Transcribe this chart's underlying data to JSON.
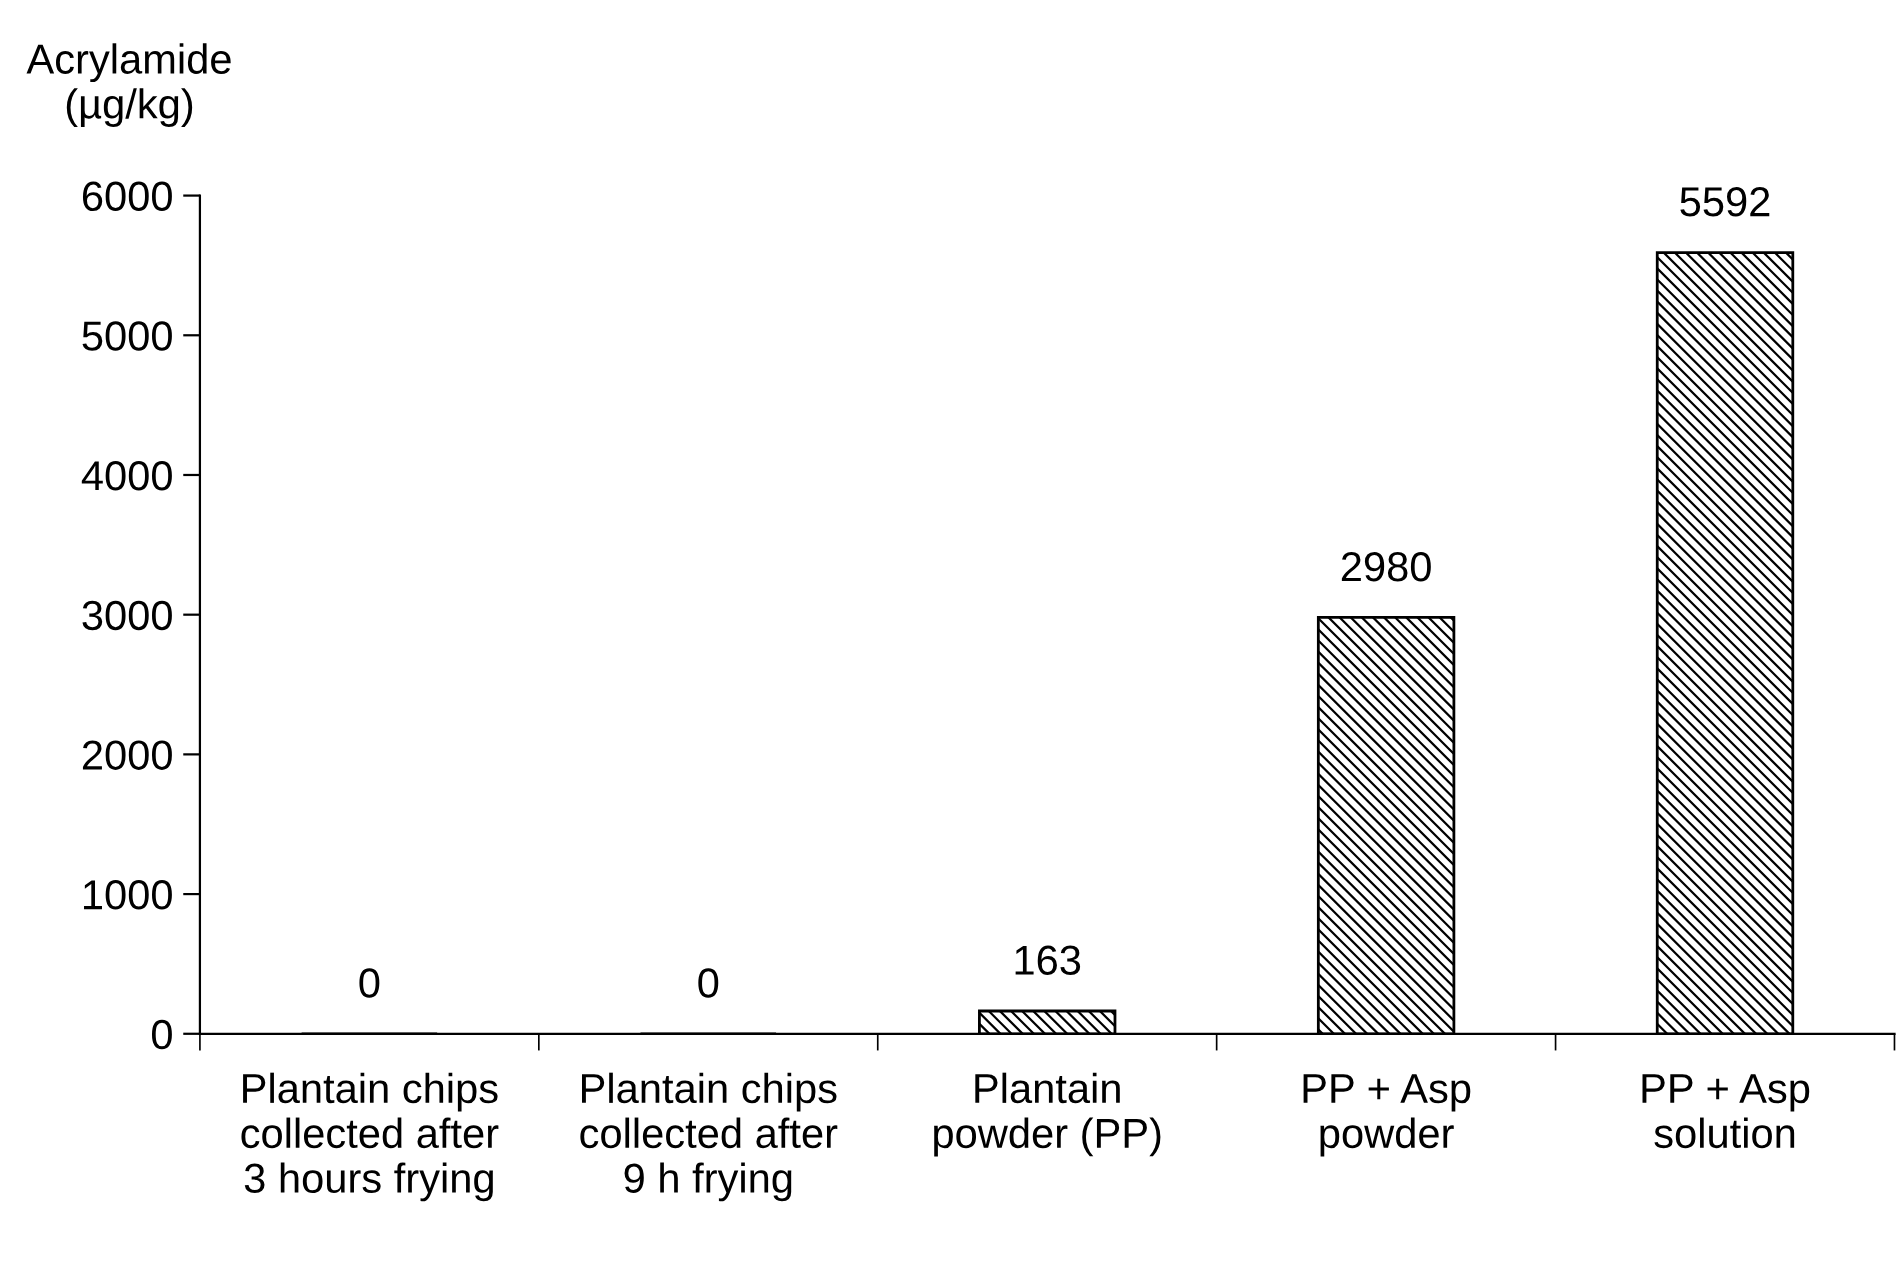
{
  "chart_data": {
    "type": "bar",
    "ylabel": "Acrylamide\n(µg/kg)",
    "categories": [
      "Plantain chips\ncollected after\n3 hours frying",
      "Plantain chips\ncollected after\n9 h frying",
      "Plantain\npowder (PP)",
      "PP + Asp\npowder",
      "PP + Asp\nsolution"
    ],
    "values": [
      0,
      0,
      163,
      2980,
      5592
    ],
    "ylim": [
      0,
      6000
    ],
    "yticks": [
      0,
      1000,
      2000,
      3000,
      4000,
      5000,
      6000
    ],
    "data_labels": true,
    "grid": false
  }
}
